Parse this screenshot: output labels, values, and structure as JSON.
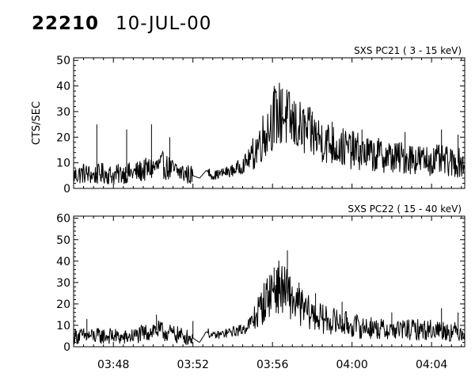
{
  "header": {
    "observation_id": "22210",
    "date": "10-JUL-00"
  },
  "chart_data": [
    {
      "type": "line",
      "title": "SXS PC21  (  3 - 15 keV)",
      "ylabel": "CTS/SEC",
      "xlabel": "",
      "x_unit": "UT (HH:MM)",
      "xlim": [
        "03:46:00",
        "04:05:40"
      ],
      "x_ticks": [
        "03:48",
        "03:52",
        "03:56",
        "04:00",
        "04:04"
      ],
      "ylim": [
        0,
        51
      ],
      "y_ticks": [
        0,
        10,
        20,
        30,
        40,
        50
      ],
      "grid": false,
      "legend": "none",
      "series": [
        {
          "color": "#000000",
          "points": [
            [
              "03:46:00",
              5
            ],
            [
              "03:46:30",
              6
            ],
            [
              "03:47:00",
              5
            ],
            [
              "03:47:30",
              6
            ],
            [
              "03:48:00",
              5
            ],
            [
              "03:48:30",
              6
            ],
            [
              "03:49:00",
              6
            ],
            [
              "03:49:30",
              7
            ],
            [
              "03:50:00",
              8
            ],
            [
              "03:50:30",
              9
            ],
            [
              "03:51:00",
              7
            ],
            [
              "03:51:30",
              6
            ],
            [
              "03:52:00",
              5
            ],
            [
              "03:52:20",
              4
            ],
            [
              "03:52:40",
              7
            ],
            [
              "03:53:00",
              5
            ],
            [
              "03:53:30",
              6
            ],
            [
              "03:54:00",
              7
            ],
            [
              "03:54:30",
              9
            ],
            [
              "03:55:00",
              13
            ],
            [
              "03:55:20",
              18
            ],
            [
              "03:55:40",
              22
            ],
            [
              "03:56:00",
              27
            ],
            [
              "03:56:20",
              29
            ],
            [
              "03:56:40",
              28
            ],
            [
              "03:57:00",
              25
            ],
            [
              "03:57:30",
              23
            ],
            [
              "03:58:00",
              21
            ],
            [
              "03:58:30",
              19
            ],
            [
              "03:59:00",
              17
            ],
            [
              "03:59:30",
              16
            ],
            [
              "04:00:00",
              15
            ],
            [
              "04:00:30",
              14
            ],
            [
              "04:01:00",
              13
            ],
            [
              "04:01:30",
              13
            ],
            [
              "04:02:00",
              12
            ],
            [
              "04:02:30",
              12
            ],
            [
              "04:03:00",
              12
            ],
            [
              "04:03:30",
              11
            ],
            [
              "04:04:00",
              11
            ],
            [
              "04:04:30",
              11
            ],
            [
              "04:05:00",
              10
            ],
            [
              "04:05:40",
              10
            ]
          ],
          "spikes": [
            [
              "03:47:10",
              25
            ],
            [
              "03:48:40",
              23
            ],
            [
              "03:49:55",
              25
            ],
            [
              "03:50:50",
              20
            ],
            [
              "03:56:05",
              40
            ],
            [
              "03:56:30",
              39
            ],
            [
              "03:57:00",
              33
            ],
            [
              "03:58:00",
              30
            ],
            [
              "03:59:00",
              26
            ],
            [
              "04:00:30",
              23
            ],
            [
              "04:02:40",
              22
            ],
            [
              "04:04:30",
              23
            ],
            [
              "04:05:20",
              21
            ]
          ]
        }
      ]
    },
    {
      "type": "line",
      "title": "SXS PC22  ( 15 - 40 keV)",
      "ylabel": "",
      "xlabel": "",
      "x_unit": "UT (HH:MM)",
      "xlim": [
        "03:46:00",
        "04:05:40"
      ],
      "x_ticks": [
        "03:48",
        "03:52",
        "03:56",
        "04:00",
        "04:04"
      ],
      "ylim": [
        0,
        61
      ],
      "y_ticks": [
        0,
        10,
        20,
        30,
        40,
        50,
        60
      ],
      "grid": false,
      "legend": "none",
      "series": [
        {
          "color": "#000000",
          "points": [
            [
              "03:46:00",
              5
            ],
            [
              "03:46:30",
              5
            ],
            [
              "03:47:00",
              5
            ],
            [
              "03:47:30",
              5
            ],
            [
              "03:48:00",
              5
            ],
            [
              "03:48:30",
              4
            ],
            [
              "03:49:00",
              5
            ],
            [
              "03:49:30",
              6
            ],
            [
              "03:50:00",
              8
            ],
            [
              "03:50:30",
              7
            ],
            [
              "03:51:00",
              6
            ],
            [
              "03:51:30",
              5
            ],
            [
              "03:52:00",
              4
            ],
            [
              "03:52:20",
              2
            ],
            [
              "03:52:40",
              7
            ],
            [
              "03:53:00",
              5
            ],
            [
              "03:53:30",
              6
            ],
            [
              "03:54:00",
              7
            ],
            [
              "03:54:30",
              8
            ],
            [
              "03:55:00",
              12
            ],
            [
              "03:55:20",
              17
            ],
            [
              "03:55:40",
              22
            ],
            [
              "03:56:00",
              27
            ],
            [
              "03:56:20",
              28
            ],
            [
              "03:56:40",
              26
            ],
            [
              "03:57:00",
              22
            ],
            [
              "03:57:30",
              18
            ],
            [
              "03:58:00",
              15
            ],
            [
              "03:58:30",
              13
            ],
            [
              "03:59:00",
              12
            ],
            [
              "03:59:30",
              11
            ],
            [
              "04:00:00",
              10
            ],
            [
              "04:00:30",
              9
            ],
            [
              "04:01:00",
              9
            ],
            [
              "04:01:30",
              8
            ],
            [
              "04:02:00",
              8
            ],
            [
              "04:02:30",
              8
            ],
            [
              "04:03:00",
              8
            ],
            [
              "04:03:30",
              8
            ],
            [
              "04:04:00",
              8
            ],
            [
              "04:04:30",
              8
            ],
            [
              "04:05:00",
              7
            ],
            [
              "04:05:40",
              7
            ]
          ],
          "spikes": [
            [
              "03:46:40",
              13
            ],
            [
              "03:50:10",
              15
            ],
            [
              "03:52:00",
              12
            ],
            [
              "03:56:05",
              37
            ],
            [
              "03:56:45",
              45
            ],
            [
              "03:57:20",
              30
            ],
            [
              "03:58:10",
              25
            ],
            [
              "03:59:30",
              21
            ],
            [
              "04:02:00",
              16
            ],
            [
              "04:04:30",
              18
            ],
            [
              "04:05:20",
              16
            ]
          ]
        }
      ]
    }
  ]
}
